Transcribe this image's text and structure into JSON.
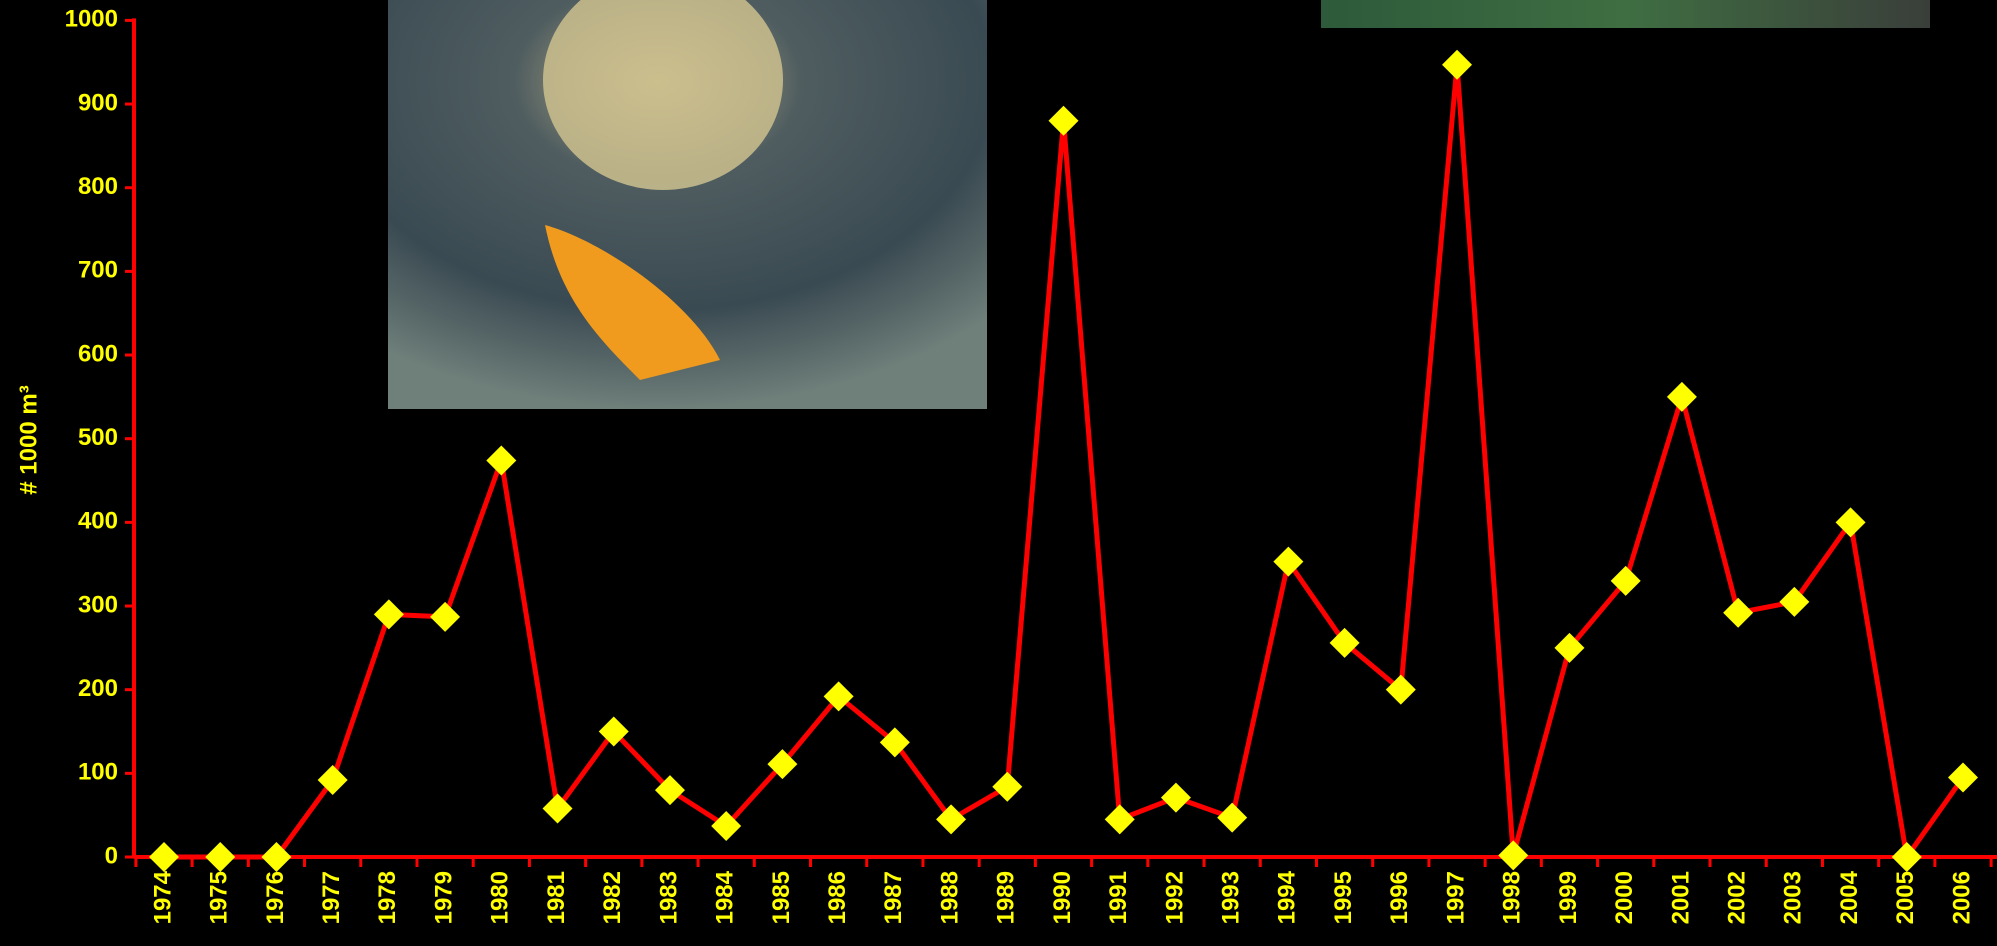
{
  "chart_data": {
    "type": "line",
    "y_label": "# 1000 m³",
    "categories": [
      "1974",
      "1975",
      "1976",
      "1977",
      "1978",
      "1979",
      "1980",
      "1981",
      "1982",
      "1983",
      "1984",
      "1985",
      "1986",
      "1987",
      "1988",
      "1989",
      "1990",
      "1991",
      "1992",
      "1993",
      "1994",
      "1995",
      "1996",
      "1997",
      "1998",
      "1999",
      "2000",
      "2001",
      "2002",
      "2003",
      "2004",
      "2005",
      "2006"
    ],
    "series": [
      {
        "name": null,
        "color": "#ff0000",
        "marker_color": "#ffff00",
        "values": [
          0,
          0,
          0,
          92,
          290,
          287,
          474,
          58,
          150,
          80,
          37,
          111,
          192,
          137,
          45,
          84,
          880,
          45,
          71,
          47,
          353,
          256,
          200,
          947,
          2,
          250,
          330,
          550,
          292,
          305,
          400,
          0,
          95
        ]
      }
    ],
    "ylim": [
      0,
      1000
    ],
    "yticks": [
      0,
      100,
      200,
      300,
      400,
      500,
      600,
      700,
      800,
      900,
      1000
    ],
    "grid": false
  }
}
